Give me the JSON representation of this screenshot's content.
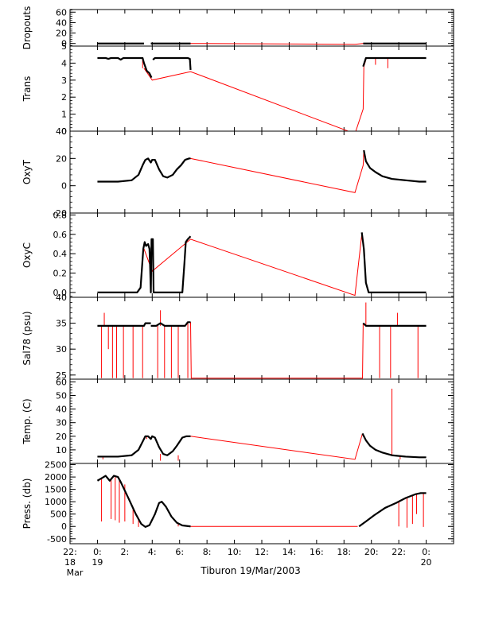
{
  "chart_data": {
    "type": "line",
    "title": "",
    "xlabel": "Tiburon 19/Mar/2003",
    "x_unit": "hours from 00:00 19 Mar 2003",
    "xlim": [
      -2,
      26
    ],
    "x_ticks": [
      {
        "value": -2,
        "label1": "22:",
        "label2": "18",
        "label3": "Mar"
      },
      {
        "value": 0,
        "label1": "0:",
        "label2": "19",
        "label3": ""
      },
      {
        "value": 2,
        "label1": "2:",
        "label2": "",
        "label3": ""
      },
      {
        "value": 4,
        "label1": "4:",
        "label2": "",
        "label3": ""
      },
      {
        "value": 6,
        "label1": "6:",
        "label2": "",
        "label3": ""
      },
      {
        "value": 8,
        "label1": "8:",
        "label2": "",
        "label3": ""
      },
      {
        "value": 10,
        "label1": "10:",
        "label2": "",
        "label3": ""
      },
      {
        "value": 12,
        "label1": "12:",
        "label2": "",
        "label3": ""
      },
      {
        "value": 14,
        "label1": "14:",
        "label2": "",
        "label3": ""
      },
      {
        "value": 16,
        "label1": "16:",
        "label2": "",
        "label3": ""
      },
      {
        "value": 18,
        "label1": "18:",
        "label2": "",
        "label3": ""
      },
      {
        "value": 20,
        "label1": "20:",
        "label2": "",
        "label3": ""
      },
      {
        "value": 22,
        "label1": "22:",
        "label2": "",
        "label3": ""
      },
      {
        "value": 24,
        "label1": "0:",
        "label2": "20",
        "label3": ""
      }
    ],
    "colors": {
      "data": "#000000",
      "interp": "#ff0000"
    },
    "panels": [
      {
        "name": "dropouts",
        "ylabel": "Dropouts",
        "ylim": [
          -5,
          65
        ],
        "yticks": [
          0,
          20,
          40,
          60
        ],
        "ytick_labels": [
          "0",
          "20",
          "40",
          "60"
        ],
        "interp": [
          [
            6.8,
            0
          ],
          [
            18.8,
            -1.5
          ],
          [
            19.4,
            0
          ]
        ],
        "data": [
          [
            [
              0,
              0
            ],
            [
              3.4,
              0
            ]
          ],
          [
            [
              3.9,
              0
            ],
            [
              6.8,
              0
            ]
          ],
          [
            [
              19.4,
              0
            ],
            [
              24.0,
              0
            ]
          ]
        ],
        "spikes": []
      },
      {
        "name": "trans",
        "ylabel": "Trans",
        "ylim": [
          0,
          5
        ],
        "yticks": [
          0,
          1,
          2,
          3,
          4,
          5
        ],
        "ytick_labels": [
          "0",
          "1",
          "2",
          "3",
          "4",
          "5"
        ],
        "interp": [
          [
            3.4,
            3.7
          ],
          [
            4.0,
            3.0
          ],
          [
            6.8,
            3.5
          ],
          [
            18.8,
            -0.15
          ],
          [
            19.4,
            1.3
          ],
          [
            19.45,
            3.8
          ],
          [
            19.6,
            4.2
          ]
        ],
        "data": [
          [
            [
              0,
              4.3
            ],
            [
              0.6,
              4.3
            ],
            [
              0.8,
              4.25
            ],
            [
              1.0,
              4.3
            ],
            [
              1.5,
              4.3
            ],
            [
              1.7,
              4.2
            ],
            [
              1.9,
              4.3
            ],
            [
              3.3,
              4.3
            ],
            [
              3.4,
              4.0
            ],
            [
              3.6,
              3.55
            ],
            [
              3.8,
              3.4
            ],
            [
              3.95,
              3.15
            ]
          ],
          [
            [
              4.05,
              4.2
            ],
            [
              4.2,
              4.3
            ],
            [
              6.6,
              4.3
            ],
            [
              6.75,
              4.25
            ],
            [
              6.8,
              3.6
            ]
          ],
          [
            [
              19.4,
              3.8
            ],
            [
              19.6,
              4.3
            ],
            [
              24.0,
              4.3
            ]
          ]
        ],
        "spikes": [
          [
            3.3,
            4.3,
            3.7
          ],
          [
            20.3,
            4.3,
            3.9
          ],
          [
            21.2,
            4.3,
            3.7
          ]
        ]
      },
      {
        "name": "oxyt",
        "ylabel": "OxyT",
        "ylim": [
          -20,
          40
        ],
        "yticks": [
          -20,
          0,
          20,
          40
        ],
        "ytick_labels": [
          "-20",
          "0",
          "20",
          "40"
        ],
        "interp": [
          [
            6.8,
            20
          ],
          [
            18.8,
            -5
          ],
          [
            19.4,
            15
          ],
          [
            19.45,
            26
          ]
        ],
        "data": [
          [
            [
              0,
              3
            ],
            [
              1.5,
              3
            ],
            [
              2.5,
              4
            ],
            [
              3.0,
              8
            ],
            [
              3.3,
              15
            ],
            [
              3.5,
              19
            ],
            [
              3.7,
              20
            ],
            [
              3.9,
              17
            ],
            [
              4.0,
              19
            ],
            [
              4.2,
              19
            ],
            [
              4.5,
              12
            ],
            [
              4.8,
              7
            ],
            [
              5.1,
              6
            ],
            [
              5.5,
              8
            ],
            [
              5.8,
              12
            ],
            [
              6.1,
              15
            ],
            [
              6.4,
              19
            ],
            [
              6.7,
              20
            ],
            [
              6.8,
              20
            ]
          ],
          [
            [
              19.45,
              26
            ],
            [
              19.6,
              18
            ],
            [
              19.9,
              13
            ],
            [
              20.3,
              10
            ],
            [
              20.8,
              7
            ],
            [
              21.5,
              5
            ],
            [
              22.5,
              4
            ],
            [
              23.5,
              3
            ],
            [
              24.0,
              3
            ]
          ]
        ],
        "spikes": []
      },
      {
        "name": "oxyc",
        "ylabel": "OxyC",
        "ylim": [
          -0.05,
          0.82
        ],
        "yticks": [
          0.0,
          0.2,
          0.4,
          0.6,
          0.8
        ],
        "ytick_labels": [
          "0.0",
          "0.2",
          "0.4",
          "0.6",
          "0.8"
        ],
        "interp": [
          [
            3.4,
            0.45
          ],
          [
            4.0,
            0.22
          ],
          [
            6.8,
            0.55
          ],
          [
            18.8,
            -0.03
          ],
          [
            19.3,
            0.6
          ]
        ],
        "data": [
          [
            [
              0,
              0.0
            ],
            [
              2.9,
              0.0
            ],
            [
              3.15,
              0.05
            ],
            [
              3.35,
              0.45
            ],
            [
              3.45,
              0.52
            ],
            [
              3.55,
              0.48
            ],
            [
              3.7,
              0.5
            ],
            [
              3.8,
              0.45
            ],
            [
              3.85,
              0.25
            ],
            [
              3.9,
              0.0
            ],
            [
              3.95,
              0.55
            ],
            [
              4.05,
              0.55
            ],
            [
              4.1,
              0.0
            ],
            [
              6.2,
              0.0
            ],
            [
              6.35,
              0.3
            ],
            [
              6.45,
              0.52
            ],
            [
              6.6,
              0.55
            ],
            [
              6.8,
              0.58
            ]
          ],
          [
            [
              19.3,
              0.62
            ],
            [
              19.45,
              0.45
            ],
            [
              19.6,
              0.1
            ],
            [
              19.8,
              0.0
            ],
            [
              24.0,
              0.0
            ]
          ]
        ],
        "spikes": []
      },
      {
        "name": "sal78",
        "ylabel": "Sal78 (psu)",
        "ylim": [
          24.2,
          40
        ],
        "yticks": [
          25,
          30,
          35,
          40
        ],
        "ytick_labels": [
          "25",
          "30",
          "35",
          "40"
        ],
        "interp": [
          [
            6.8,
            35.2
          ],
          [
            6.85,
            24.4
          ],
          [
            19.35,
            24.4
          ],
          [
            19.4,
            35
          ]
        ],
        "data": [
          [
            [
              0,
              34.5
            ],
            [
              3.3,
              34.5
            ],
            [
              3.4,
              34.5
            ],
            [
              3.5,
              35.0
            ],
            [
              3.9,
              35.0
            ]
          ],
          [
            [
              3.9,
              34.5
            ],
            [
              4.3,
              34.5
            ],
            [
              4.6,
              35.0
            ],
            [
              4.9,
              34.5
            ],
            [
              6.4,
              34.5
            ],
            [
              6.6,
              35.2
            ],
            [
              6.8,
              35.2
            ]
          ],
          [
            [
              19.4,
              35.0
            ],
            [
              19.6,
              34.5
            ],
            [
              24.0,
              34.5
            ]
          ]
        ],
        "spikes": [
          [
            0.3,
            34.5,
            24.4
          ],
          [
            0.5,
            34.5,
            37.0
          ],
          [
            0.8,
            34.5,
            30.0
          ],
          [
            1.1,
            34.5,
            24.4
          ],
          [
            1.4,
            34.5,
            24.4
          ],
          [
            1.9,
            34.5,
            24.4
          ],
          [
            2.6,
            34.5,
            24.4
          ],
          [
            3.3,
            34.5,
            24.4
          ],
          [
            4.4,
            34.5,
            24.4
          ],
          [
            4.6,
            34.5,
            37.5
          ],
          [
            4.9,
            34.5,
            24.4
          ],
          [
            5.4,
            34.5,
            24.4
          ],
          [
            5.9,
            34.5,
            24.4
          ],
          [
            6.6,
            35.2,
            24.4
          ],
          [
            19.6,
            34.5,
            39.0
          ],
          [
            20.6,
            34.5,
            24.4
          ],
          [
            21.4,
            34.5,
            24.4
          ],
          [
            21.9,
            34.5,
            37.0
          ],
          [
            23.4,
            34.5,
            24.4
          ]
        ]
      },
      {
        "name": "temp",
        "ylabel": "Temp. (C)",
        "ylim": [
          0,
          62
        ],
        "yticks": [
          10,
          20,
          30,
          40,
          50,
          60
        ],
        "ytick_labels": [
          "10",
          "20",
          "30",
          "40",
          "50",
          "60"
        ],
        "interp": [
          [
            6.8,
            20
          ],
          [
            18.8,
            3
          ],
          [
            19.35,
            22
          ]
        ],
        "data": [
          [
            [
              0,
              5
            ],
            [
              1.5,
              5
            ],
            [
              2.5,
              6
            ],
            [
              3.0,
              10
            ],
            [
              3.3,
              16
            ],
            [
              3.5,
              20
            ],
            [
              3.7,
              20
            ],
            [
              3.9,
              18
            ],
            [
              4.0,
              20
            ],
            [
              4.2,
              19
            ],
            [
              4.5,
              12
            ],
            [
              4.8,
              7
            ],
            [
              5.1,
              6
            ],
            [
              5.5,
              9
            ],
            [
              5.8,
              13
            ],
            [
              6.2,
              19
            ],
            [
              6.5,
              20
            ],
            [
              6.8,
              20
            ]
          ],
          [
            [
              19.35,
              22
            ],
            [
              19.6,
              17
            ],
            [
              19.9,
              13
            ],
            [
              20.3,
              10
            ],
            [
              20.8,
              8
            ],
            [
              21.5,
              6
            ],
            [
              22.5,
              5
            ],
            [
              23.5,
              4.5
            ],
            [
              24.0,
              4.5
            ]
          ]
        ],
        "spikes": [
          [
            0.4,
            5,
            3
          ],
          [
            4.6,
            7,
            2
          ],
          [
            5.9,
            6,
            2
          ],
          [
            21.5,
            6,
            55
          ],
          [
            22.1,
            5,
            3
          ],
          [
            3.6,
            20,
            18
          ]
        ]
      },
      {
        "name": "press",
        "ylabel": "Press. (db)",
        "ylim": [
          -700,
          2550
        ],
        "yticks": [
          -500,
          0,
          500,
          1000,
          1500,
          2000,
          2500
        ],
        "ytick_labels": [
          "-500",
          "0",
          "500",
          "1000",
          "1500",
          "2000",
          "2500"
        ],
        "interp": [
          [
            6.8,
            0
          ],
          [
            19.0,
            0
          ]
        ],
        "data": [
          [
            [
              0,
              1850
            ],
            [
              0.3,
              1950
            ],
            [
              0.6,
              2050
            ],
            [
              0.9,
              1850
            ],
            [
              1.2,
              2050
            ],
            [
              1.5,
              2000
            ],
            [
              1.7,
              1800
            ],
            [
              2.3,
              1100
            ],
            [
              2.8,
              500
            ],
            [
              3.2,
              100
            ],
            [
              3.5,
              -20
            ],
            [
              3.8,
              50
            ],
            [
              4.2,
              500
            ],
            [
              4.5,
              950
            ],
            [
              4.7,
              1000
            ],
            [
              5.0,
              800
            ],
            [
              5.4,
              400
            ],
            [
              5.8,
              150
            ],
            [
              6.2,
              40
            ],
            [
              6.8,
              0
            ]
          ],
          [
            [
              19.1,
              0
            ],
            [
              19.6,
              200
            ],
            [
              20.2,
              450
            ],
            [
              21.0,
              750
            ],
            [
              21.8,
              950
            ],
            [
              22.5,
              1150
            ],
            [
              23.2,
              1300
            ],
            [
              23.6,
              1350
            ],
            [
              24.0,
              1350
            ]
          ]
        ],
        "spikes": [
          [
            0.3,
            1950,
            200
          ],
          [
            1.0,
            1900,
            300
          ],
          [
            1.3,
            2000,
            250
          ],
          [
            1.6,
            1950,
            150
          ],
          [
            2.0,
            1700,
            200
          ],
          [
            2.6,
            700,
            100
          ],
          [
            3.0,
            300,
            -20
          ],
          [
            5.9,
            120,
            0
          ],
          [
            22.0,
            1000,
            0
          ],
          [
            22.6,
            1150,
            -50
          ],
          [
            23.0,
            1250,
            100
          ],
          [
            23.3,
            1300,
            500
          ],
          [
            23.8,
            1350,
            -20
          ]
        ]
      }
    ]
  }
}
